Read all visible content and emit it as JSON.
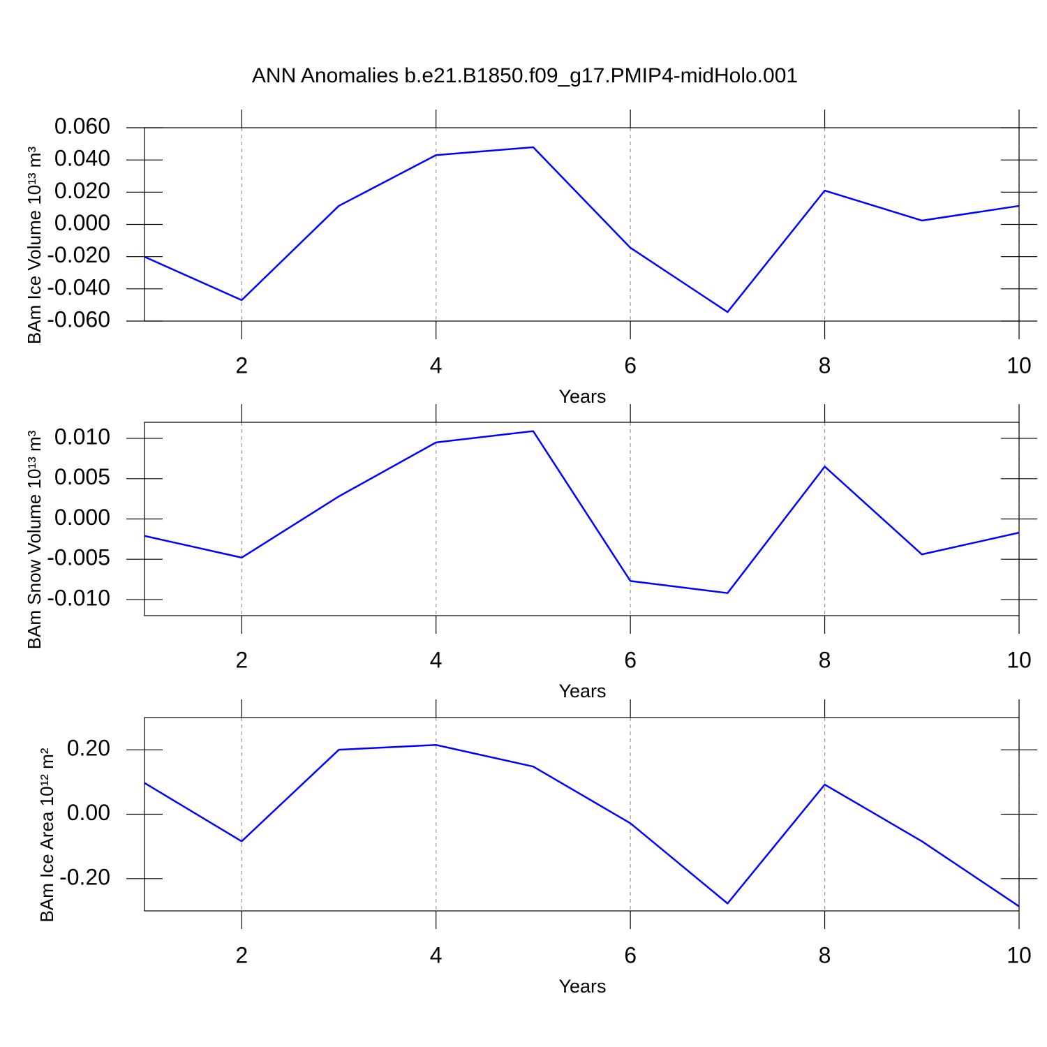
{
  "title": "ANN Anomalies b.e21.B1850.f09_g17.PMIP4-midHolo.001",
  "chart_data": [
    {
      "type": "line",
      "xlabel": "Years",
      "ylabel": "BAm Ice Volume 10¹³ m³",
      "x": [
        1,
        2,
        3,
        4,
        5,
        6,
        7,
        8,
        9,
        10
      ],
      "values": [
        -0.0201,
        -0.047,
        0.0115,
        0.043,
        0.0479,
        -0.0145,
        -0.0544,
        0.021,
        0.0024,
        0.0115
      ],
      "color": "#0000ff",
      "xlim": [
        1,
        10
      ],
      "xticks": [
        2,
        4,
        6,
        8,
        10
      ],
      "xgrid": true,
      "ylim": [
        -0.06,
        0.06
      ],
      "yticks": [
        {
          "value": -0.06,
          "label": "-0.060"
        },
        {
          "value": -0.04,
          "label": "-0.040"
        },
        {
          "value": -0.02,
          "label": "-0.020"
        },
        {
          "value": 0,
          "label": "0.000"
        },
        {
          "value": 0.02,
          "label": "0.020"
        },
        {
          "value": 0.04,
          "label": "0.040"
        },
        {
          "value": 0.06,
          "label": "0.060"
        }
      ]
    },
    {
      "type": "line",
      "xlabel": "Years",
      "ylabel": "BAm Snow Volume 10¹³ m³",
      "x": [
        1,
        2,
        3,
        4,
        5,
        6,
        7,
        8,
        9,
        10
      ],
      "values": [
        -0.0021,
        -0.0048,
        0.0028,
        0.0095,
        0.0109,
        -0.0077,
        -0.0092,
        0.0065,
        -0.0044,
        -0.0017
      ],
      "color": "#0000ff",
      "xlim": [
        1,
        10
      ],
      "xticks": [
        2,
        4,
        6,
        8,
        10
      ],
      "xgrid": true,
      "ylim": [
        -0.012,
        0.012
      ],
      "yticks": [
        {
          "value": -0.01,
          "label": "-0.010"
        },
        {
          "value": -0.005,
          "label": "-0.005"
        },
        {
          "value": 0,
          "label": "0.000"
        },
        {
          "value": 0.005,
          "label": "0.005"
        },
        {
          "value": 0.01,
          "label": "0.010"
        }
      ]
    },
    {
      "type": "line",
      "xlabel": "Years",
      "ylabel": "BAm Ice Area 10¹² m²",
      "x": [
        1,
        2,
        3,
        4,
        5,
        6,
        7,
        8,
        9,
        10
      ],
      "values": [
        0.097,
        -0.084,
        0.2,
        0.215,
        0.148,
        -0.028,
        -0.277,
        0.092,
        -0.084,
        -0.286
      ],
      "color": "#0000ff",
      "xlim": [
        1,
        10
      ],
      "xticks": [
        2,
        4,
        6,
        8,
        10
      ],
      "xgrid": true,
      "ylim": [
        -0.3,
        0.3
      ],
      "yticks": [
        {
          "value": -0.2,
          "label": "-0.20"
        },
        {
          "value": 0,
          "label": "0.00"
        },
        {
          "value": 0.2,
          "label": "0.20"
        }
      ]
    }
  ]
}
